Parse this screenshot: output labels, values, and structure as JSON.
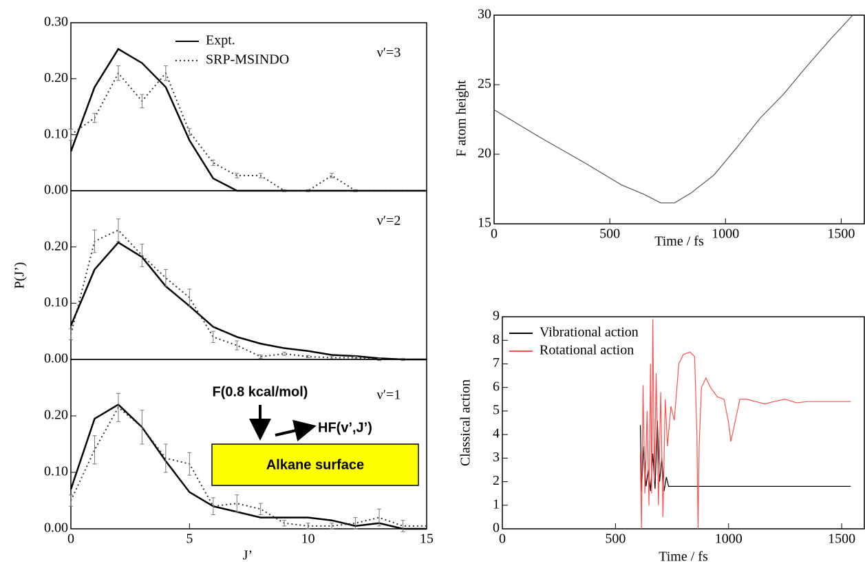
{
  "chart_data": [
    {
      "type": "line",
      "panel_label": "ν′=3",
      "x": [
        0,
        1,
        2,
        3,
        4,
        5,
        6,
        7,
        8,
        9,
        10,
        11,
        12,
        13,
        14,
        15
      ],
      "xlim": [
        0,
        15
      ],
      "ylim": [
        0,
        0.3
      ],
      "yticks": [
        {
          "value": 0,
          "label": "0.00"
        },
        {
          "value": 0.1,
          "label": "0.10"
        },
        {
          "value": 0.2,
          "label": "0.20"
        },
        {
          "value": 0.3,
          "label": "0.30"
        }
      ],
      "legend": "top",
      "series": [
        {
          "name": "Expt.",
          "color": "#000000",
          "linestyle": "solid",
          "values": [
            0.07,
            0.185,
            0.253,
            0.228,
            0.185,
            0.09,
            0.022,
            0,
            0,
            0,
            0,
            0,
            0,
            0,
            0,
            0
          ]
        },
        {
          "name": "SRP-MSINDO",
          "color": "#333333",
          "linestyle": "dotted",
          "values": [
            0.1,
            0.13,
            0.21,
            0.16,
            0.21,
            0.105,
            0.05,
            0.027,
            0.027,
            0,
            0,
            0.027,
            0,
            0,
            0,
            0
          ],
          "errors": [
            0.01,
            0.008,
            0.013,
            0.012,
            0.013,
            0.006,
            0.005,
            0.004,
            0.004,
            0.002,
            0.002,
            0.004,
            0.002,
            0,
            0,
            0
          ]
        }
      ]
    },
    {
      "type": "line",
      "panel_label": "ν′=2",
      "ylabel": "P(J’)",
      "x": [
        0,
        1,
        2,
        3,
        4,
        5,
        6,
        7,
        8,
        9,
        10,
        11,
        12,
        13,
        14,
        15
      ],
      "xlim": [
        0,
        15
      ],
      "ylim": [
        0,
        0.3
      ],
      "yticks": [
        {
          "value": 0,
          "label": "0.00"
        },
        {
          "value": 0.1,
          "label": "0.10"
        },
        {
          "value": 0.2,
          "label": "0.20"
        }
      ],
      "series": [
        {
          "name": "Expt.",
          "color": "#000000",
          "linestyle": "solid",
          "values": [
            0.06,
            0.16,
            0.208,
            0.182,
            0.13,
            0.095,
            0.058,
            0.04,
            0.028,
            0.02,
            0.015,
            0.008,
            0.006,
            0.002,
            0,
            0
          ]
        },
        {
          "name": "SRP-MSINDO",
          "color": "#333333",
          "linestyle": "dotted",
          "values": [
            0.045,
            0.21,
            0.23,
            0.185,
            0.145,
            0.11,
            0.04,
            0.025,
            0.005,
            0.01,
            0.005,
            0.003,
            0.003,
            0,
            0,
            0
          ],
          "errors": [
            0.01,
            0.02,
            0.02,
            0.02,
            0.015,
            0.015,
            0.01,
            0.008,
            0.003,
            0.003,
            0.002,
            0.002,
            0.002,
            0.002,
            0.002,
            0
          ]
        }
      ]
    },
    {
      "type": "line",
      "panel_label": "ν′=1",
      "xlabel": "J’",
      "annotations": [
        "F(0.8 kcal/mol)",
        "HF(v’,J’)",
        "Alkane surface"
      ],
      "x": [
        0,
        1,
        2,
        3,
        4,
        5,
        6,
        7,
        8,
        9,
        10,
        11,
        12,
        13,
        14,
        15
      ],
      "xlim": [
        0,
        15
      ],
      "xticks": [
        0,
        5,
        10,
        15
      ],
      "ylim": [
        0,
        0.3
      ],
      "yticks": [
        {
          "value": 0,
          "label": "0.00"
        },
        {
          "value": 0.1,
          "label": "0.10"
        },
        {
          "value": 0.2,
          "label": "0.20"
        }
      ],
      "series": [
        {
          "name": "Expt.",
          "color": "#000000",
          "linestyle": "solid",
          "values": [
            0.07,
            0.195,
            0.22,
            0.18,
            0.12,
            0.065,
            0.04,
            0.03,
            0.02,
            0.02,
            0.02,
            0.015,
            0.005,
            0.01,
            0,
            0
          ]
        },
        {
          "name": "SRP-MSINDO",
          "color": "#333333",
          "linestyle": "dotted",
          "values": [
            0.05,
            0.14,
            0.215,
            0.18,
            0.125,
            0.115,
            0.04,
            0.045,
            0.035,
            0.01,
            0.005,
            0.005,
            0.01,
            0.02,
            0.005,
            0.005
          ],
          "errors": [
            0.01,
            0.025,
            0.025,
            0.03,
            0.025,
            0.02,
            0.015,
            0.015,
            0.01,
            0.005,
            0.005,
            0.005,
            0.01,
            0.015,
            0.01,
            0
          ]
        }
      ]
    },
    {
      "type": "line",
      "ylabel": "F atom height",
      "xlabel": "Time / fs",
      "xlim": [
        0,
        1600
      ],
      "xticks": [
        0,
        500,
        1000,
        1500
      ],
      "ylim": [
        15,
        30
      ],
      "yticks": [
        15,
        20,
        25,
        30
      ],
      "series": [
        {
          "color": "#555555",
          "linestyle": "solid",
          "x": [
            0,
            200,
            400,
            550,
            650,
            720,
            780,
            850,
            950,
            1050,
            1150,
            1250,
            1350,
            1450,
            1550
          ],
          "values": [
            23.2,
            21.2,
            19.3,
            17.8,
            17.1,
            16.5,
            16.5,
            17.2,
            18.5,
            20.5,
            22.6,
            24.3,
            26.3,
            28.2,
            30
          ]
        }
      ]
    },
    {
      "type": "line",
      "ylabel": "Classical action",
      "xlabel": "Time / fs",
      "xlim": [
        0,
        1600
      ],
      "xticks": [
        0,
        500,
        1000,
        1500
      ],
      "ylim": [
        0,
        9
      ],
      "yticks": [
        0,
        1,
        2,
        3,
        4,
        5,
        6,
        7,
        8,
        9
      ],
      "legend": "top-left",
      "series": [
        {
          "name": "Vibrational action",
          "color": "#000000",
          "linestyle": "solid",
          "x": [
            610,
            615,
            625,
            635,
            645,
            655,
            665,
            675,
            685,
            695,
            705,
            715,
            725,
            735,
            800,
            1000,
            1200,
            1540
          ],
          "values": [
            4.4,
            1.6,
            3.5,
            1.8,
            2.5,
            1.6,
            3.2,
            1.7,
            4.6,
            2.0,
            3.0,
            1.6,
            2.2,
            1.8,
            1.8,
            1.8,
            1.8,
            1.8
          ]
        },
        {
          "name": "Rotational action",
          "color": "#ff5050",
          "linestyle": "solid",
          "x": [
            610,
            615,
            622,
            630,
            640,
            648,
            655,
            660,
            665,
            672,
            680,
            690,
            700,
            710,
            720,
            730,
            745,
            760,
            780,
            800,
            830,
            850,
            860,
            865,
            870,
            880,
            900,
            920,
            950,
            980,
            1000,
            1010,
            1030,
            1050,
            1080,
            1120,
            1160,
            1200,
            1250,
            1300,
            1350,
            1400,
            1540
          ],
          "values": [
            3.2,
            0,
            6.1,
            1.5,
            5.0,
            1.0,
            7.0,
            1.5,
            8.9,
            2.0,
            6.6,
            1.0,
            5.8,
            0.5,
            5.5,
            3.5,
            5.2,
            4.6,
            7.0,
            7.4,
            7.5,
            7.3,
            4.0,
            0,
            3.5,
            6.0,
            6.4,
            6.0,
            5.6,
            5.5,
            4.5,
            3.7,
            4.6,
            5.5,
            5.5,
            5.4,
            5.3,
            5.4,
            5.5,
            5.35,
            5.4,
            5.4,
            5.4
          ]
        }
      ]
    }
  ]
}
